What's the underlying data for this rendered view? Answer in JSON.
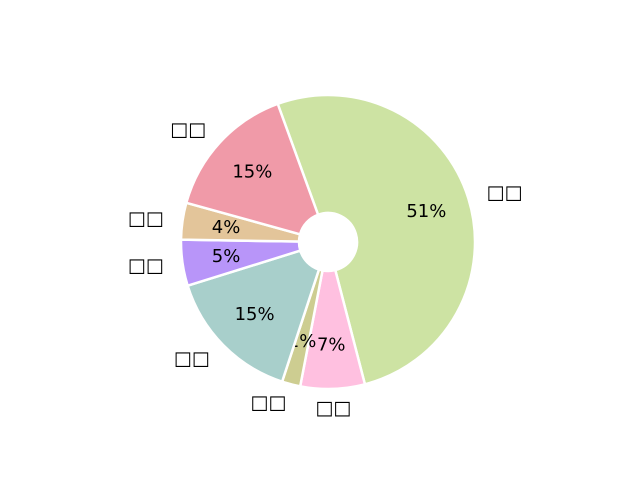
{
  "chart_data": {
    "type": "pie",
    "donut": true,
    "start_angle_deg": 110,
    "direction": "clockwise",
    "slices": [
      {
        "label": "□□",
        "value": 51,
        "pct_label": "51%",
        "color": "#cde3a3"
      },
      {
        "label": "□□",
        "value": 7,
        "pct_label": "7%",
        "color": "#ffc0e0"
      },
      {
        "label": "□□",
        "value": 2,
        "pct_label": "2%",
        "color": "#cdcd91"
      },
      {
        "label": "□□",
        "value": 15,
        "pct_label": "15%",
        "color": "#a8cfcb"
      },
      {
        "label": "□□",
        "value": 5,
        "pct_label": "5%",
        "color": "#b895f9"
      },
      {
        "label": "□□",
        "value": 4,
        "pct_label": "4%",
        "color": "#e3c59a"
      },
      {
        "label": "□□",
        "value": 15,
        "pct_label": "15%",
        "color": "#f09aa8"
      }
    ]
  }
}
